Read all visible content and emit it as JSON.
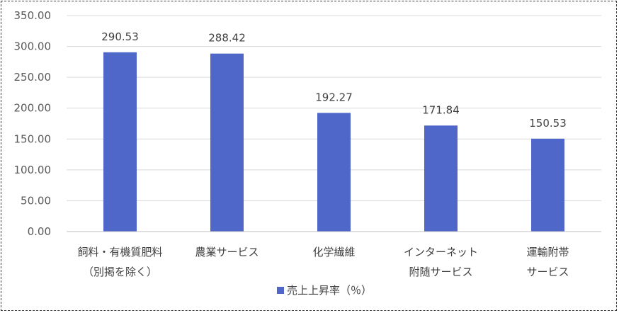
{
  "chart_data": {
    "type": "bar",
    "categories": [
      [
        "飼料・有機質肥料",
        "（別掲を除く）"
      ],
      [
        "農業サービス"
      ],
      [
        "化学繊維"
      ],
      [
        "インターネット",
        "附随サービス"
      ],
      [
        "運輸附帯",
        "サービス"
      ]
    ],
    "series": [
      {
        "name": "売上上昇率（％）",
        "values": [
          290.53,
          288.42,
          192.27,
          171.84,
          150.53
        ]
      }
    ],
    "data_labels": [
      "290.53",
      "288.42",
      "192.27",
      "171.84",
      "150.53"
    ],
    "ylim": [
      0,
      350
    ],
    "yticks": [
      "0.00",
      "50.00",
      "100.00",
      "150.00",
      "200.00",
      "250.00",
      "300.00",
      "350.00"
    ],
    "grid": true,
    "legend_position": "bottom",
    "colors": {
      "bar": "#4f67c9",
      "grid": "#d9d9d9",
      "axis": "#bfbfbf"
    }
  }
}
